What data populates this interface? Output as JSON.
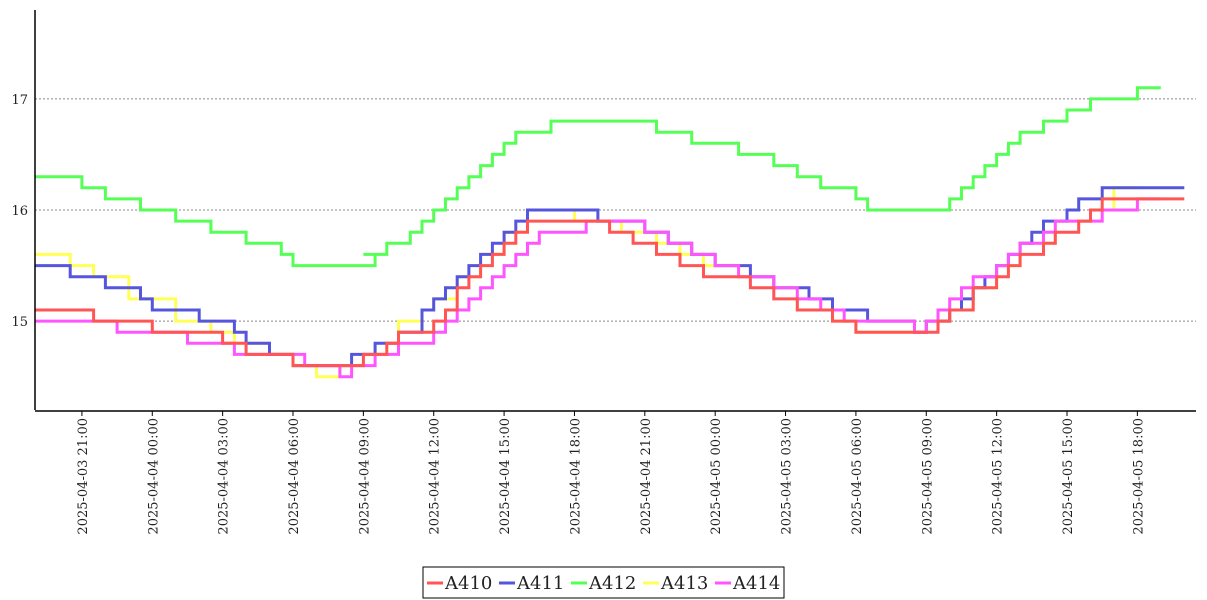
{
  "chart_data": {
    "type": "line",
    "step": true,
    "x_ticks": [
      "2025-04-03 21:00",
      "2025-04-04 00:00",
      "2025-04-04 03:00",
      "2025-04-04 06:00",
      "2025-04-04 09:00",
      "2025-04-04 12:00",
      "2025-04-04 15:00",
      "2025-04-04 18:00",
      "2025-04-04 21:00",
      "2025-04-05 00:00",
      "2025-04-05 03:00",
      "2025-04-05 06:00",
      "2025-04-05 09:00",
      "2025-04-05 12:00",
      "2025-04-05 15:00",
      "2025-04-05 18:00"
    ],
    "y_ticks": [
      "15",
      "16",
      "17"
    ],
    "xlim": [
      "2025-04-03 19:00",
      "2025-04-05 20:30"
    ],
    "ylim": [
      14.2,
      17.8
    ],
    "grid": "horizontal dotted",
    "legend_position": "bottom-center",
    "series": [
      {
        "name": "A410",
        "color": "#ff5555",
        "points": [
          [
            "2025-04-03 19:00",
            15.1
          ],
          [
            "2025-04-03 21:30",
            15.0
          ],
          [
            "2025-04-04 00:00",
            14.9
          ],
          [
            "2025-04-04 03:00",
            14.8
          ],
          [
            "2025-04-04 04:00",
            14.7
          ],
          [
            "2025-04-04 06:00",
            14.6
          ],
          [
            "2025-04-04 09:00",
            14.7
          ],
          [
            "2025-04-04 10:00",
            14.8
          ],
          [
            "2025-04-04 10:30",
            14.9
          ],
          [
            "2025-04-04 12:00",
            15.0
          ],
          [
            "2025-04-04 12:30",
            15.1
          ],
          [
            "2025-04-04 13:00",
            15.3
          ],
          [
            "2025-04-04 13:30",
            15.4
          ],
          [
            "2025-04-04 14:00",
            15.5
          ],
          [
            "2025-04-04 14:30",
            15.6
          ],
          [
            "2025-04-04 15:00",
            15.7
          ],
          [
            "2025-04-04 15:30",
            15.8
          ],
          [
            "2025-04-04 16:00",
            15.9
          ],
          [
            "2025-04-04 18:30",
            15.9
          ],
          [
            "2025-04-04 19:30",
            15.8
          ],
          [
            "2025-04-04 20:30",
            15.7
          ],
          [
            "2025-04-04 21:30",
            15.6
          ],
          [
            "2025-04-04 22:30",
            15.5
          ],
          [
            "2025-04-04 23:30",
            15.4
          ],
          [
            "2025-04-05 01:30",
            15.3
          ],
          [
            "2025-04-05 02:30",
            15.2
          ],
          [
            "2025-04-05 03:30",
            15.1
          ],
          [
            "2025-04-05 05:00",
            15.0
          ],
          [
            "2025-04-05 06:00",
            14.9
          ],
          [
            "2025-04-05 08:00",
            14.9
          ],
          [
            "2025-04-05 09:30",
            15.0
          ],
          [
            "2025-04-05 10:00",
            15.1
          ],
          [
            "2025-04-05 11:00",
            15.3
          ],
          [
            "2025-04-05 12:00",
            15.4
          ],
          [
            "2025-04-05 12:30",
            15.5
          ],
          [
            "2025-04-05 13:00",
            15.6
          ],
          [
            "2025-04-05 14:00",
            15.7
          ],
          [
            "2025-04-05 14:30",
            15.8
          ],
          [
            "2025-04-05 15:30",
            15.9
          ],
          [
            "2025-04-05 16:00",
            16.0
          ],
          [
            "2025-04-05 16:30",
            16.1
          ],
          [
            "2025-04-05 20:00",
            16.1
          ]
        ]
      },
      {
        "name": "A411",
        "color": "#5555dd",
        "points": [
          [
            "2025-04-03 19:00",
            15.5
          ],
          [
            "2025-04-03 20:30",
            15.4
          ],
          [
            "2025-04-03 22:00",
            15.3
          ],
          [
            "2025-04-03 23:30",
            15.2
          ],
          [
            "2025-04-04 00:00",
            15.1
          ],
          [
            "2025-04-04 02:00",
            15.0
          ],
          [
            "2025-04-04 03:30",
            14.9
          ],
          [
            "2025-04-04 04:00",
            14.8
          ],
          [
            "2025-04-04 05:00",
            14.7
          ],
          [
            "2025-04-04 06:00",
            14.6
          ],
          [
            "2025-04-04 08:30",
            14.7
          ],
          [
            "2025-04-04 09:30",
            14.8
          ],
          [
            "2025-04-04 10:30",
            14.9
          ],
          [
            "2025-04-04 11:30",
            15.1
          ],
          [
            "2025-04-04 12:00",
            15.2
          ],
          [
            "2025-04-04 12:30",
            15.3
          ],
          [
            "2025-04-04 13:00",
            15.4
          ],
          [
            "2025-04-04 13:30",
            15.5
          ],
          [
            "2025-04-04 14:00",
            15.6
          ],
          [
            "2025-04-04 14:30",
            15.7
          ],
          [
            "2025-04-04 15:00",
            15.8
          ],
          [
            "2025-04-04 15:30",
            15.9
          ],
          [
            "2025-04-04 16:00",
            16.0
          ],
          [
            "2025-04-04 19:00",
            15.9
          ],
          [
            "2025-04-04 21:00",
            15.8
          ],
          [
            "2025-04-04 22:00",
            15.7
          ],
          [
            "2025-04-04 23:00",
            15.6
          ],
          [
            "2025-04-05 00:00",
            15.5
          ],
          [
            "2025-04-05 01:30",
            15.4
          ],
          [
            "2025-04-05 02:30",
            15.3
          ],
          [
            "2025-04-05 04:00",
            15.2
          ],
          [
            "2025-04-05 05:00",
            15.1
          ],
          [
            "2025-04-05 06:30",
            15.0
          ],
          [
            "2025-04-05 08:30",
            14.9
          ],
          [
            "2025-04-05 09:00",
            15.0
          ],
          [
            "2025-04-05 10:00",
            15.1
          ],
          [
            "2025-04-05 10:30",
            15.2
          ],
          [
            "2025-04-05 11:00",
            15.3
          ],
          [
            "2025-04-05 11:30",
            15.4
          ],
          [
            "2025-04-05 12:00",
            15.5
          ],
          [
            "2025-04-05 12:30",
            15.6
          ],
          [
            "2025-04-05 13:00",
            15.7
          ],
          [
            "2025-04-05 13:30",
            15.8
          ],
          [
            "2025-04-05 14:00",
            15.9
          ],
          [
            "2025-04-05 15:00",
            16.0
          ],
          [
            "2025-04-05 15:30",
            16.1
          ],
          [
            "2025-04-05 16:30",
            16.2
          ],
          [
            "2025-04-05 20:00",
            16.2
          ]
        ]
      },
      {
        "name": "A412",
        "color": "#55ff55",
        "points": [
          [
            "2025-04-03 19:00",
            16.3
          ],
          [
            "2025-04-03 21:00",
            16.2
          ],
          [
            "2025-04-03 22:00",
            16.1
          ],
          [
            "2025-04-03 23:30",
            16.0
          ],
          [
            "2025-04-04 01:00",
            15.9
          ],
          [
            "2025-04-04 02:30",
            15.8
          ],
          [
            "2025-04-04 04:00",
            15.7
          ],
          [
            "2025-04-04 05:30",
            15.6
          ],
          [
            "2025-04-04 06:00",
            15.5
          ],
          [
            "2025-04-04 09:30",
            15.6
          ],
          [
            "2025-04-04 09:00",
            15.6
          ],
          [
            "2025-04-04 10:00",
            15.7
          ],
          [
            "2025-04-04 11:00",
            15.8
          ],
          [
            "2025-04-04 11:30",
            15.9
          ],
          [
            "2025-04-04 12:00",
            16.0
          ],
          [
            "2025-04-04 12:30",
            16.1
          ],
          [
            "2025-04-04 13:00",
            16.2
          ],
          [
            "2025-04-04 13:30",
            16.3
          ],
          [
            "2025-04-04 14:00",
            16.4
          ],
          [
            "2025-04-04 14:30",
            16.5
          ],
          [
            "2025-04-04 15:00",
            16.6
          ],
          [
            "2025-04-04 15:30",
            16.7
          ],
          [
            "2025-04-04 17:00",
            16.8
          ],
          [
            "2025-04-04 21:30",
            16.7
          ],
          [
            "2025-04-04 23:00",
            16.6
          ],
          [
            "2025-04-05 01:00",
            16.5
          ],
          [
            "2025-04-05 02:30",
            16.4
          ],
          [
            "2025-04-05 03:30",
            16.3
          ],
          [
            "2025-04-05 04:30",
            16.2
          ],
          [
            "2025-04-05 06:00",
            16.1
          ],
          [
            "2025-04-05 06:30",
            16.0
          ],
          [
            "2025-04-05 10:00",
            16.1
          ],
          [
            "2025-04-05 10:30",
            16.2
          ],
          [
            "2025-04-05 11:00",
            16.3
          ],
          [
            "2025-04-05 11:30",
            16.4
          ],
          [
            "2025-04-05 12:00",
            16.5
          ],
          [
            "2025-04-05 12:30",
            16.6
          ],
          [
            "2025-04-05 13:00",
            16.7
          ],
          [
            "2025-04-05 14:00",
            16.8
          ],
          [
            "2025-04-05 15:00",
            16.9
          ],
          [
            "2025-04-05 16:00",
            17.0
          ],
          [
            "2025-04-05 18:00",
            17.1
          ],
          [
            "2025-04-05 19:00",
            17.1
          ]
        ]
      },
      {
        "name": "A413",
        "color": "#ffff55",
        "points": [
          [
            "2025-04-03 19:00",
            15.6
          ],
          [
            "2025-04-03 20:30",
            15.5
          ],
          [
            "2025-04-03 21:30",
            15.4
          ],
          [
            "2025-04-03 23:00",
            15.2
          ],
          [
            "2025-04-04 01:00",
            15.0
          ],
          [
            "2025-04-04 02:30",
            14.9
          ],
          [
            "2025-04-04 03:30",
            14.8
          ],
          [
            "2025-04-04 05:00",
            14.7
          ],
          [
            "2025-04-04 06:00",
            14.6
          ],
          [
            "2025-04-04 07:00",
            14.5
          ],
          [
            "2025-04-04 08:00",
            14.6
          ],
          [
            "2025-04-04 09:00",
            14.7
          ],
          [
            "2025-04-04 10:00",
            14.8
          ],
          [
            "2025-04-04 10:30",
            15.0
          ],
          [
            "2025-04-04 11:30",
            15.1
          ],
          [
            "2025-04-04 12:00",
            15.2
          ],
          [
            "2025-04-04 13:00",
            15.4
          ],
          [
            "2025-04-04 14:00",
            15.6
          ],
          [
            "2025-04-04 15:00",
            15.8
          ],
          [
            "2025-04-04 16:00",
            16.0
          ],
          [
            "2025-04-04 18:00",
            15.9
          ],
          [
            "2025-04-04 20:00",
            15.8
          ],
          [
            "2025-04-04 21:30",
            15.7
          ],
          [
            "2025-04-04 22:30",
            15.6
          ],
          [
            "2025-04-04 23:30",
            15.5
          ],
          [
            "2025-04-05 01:00",
            15.4
          ],
          [
            "2025-04-05 02:30",
            15.3
          ],
          [
            "2025-04-05 03:30",
            15.1
          ],
          [
            "2025-04-05 05:00",
            15.0
          ],
          [
            "2025-04-05 06:00",
            14.9
          ],
          [
            "2025-04-05 09:00",
            15.0
          ],
          [
            "2025-04-05 10:00",
            15.1
          ],
          [
            "2025-04-05 11:00",
            15.3
          ],
          [
            "2025-04-05 12:00",
            15.5
          ],
          [
            "2025-04-05 13:00",
            15.7
          ],
          [
            "2025-04-05 14:30",
            15.9
          ],
          [
            "2025-04-05 16:00",
            16.0
          ],
          [
            "2025-04-05 17:00",
            16.2
          ],
          [
            "2025-04-05 18:00",
            16.2
          ]
        ]
      },
      {
        "name": "A414",
        "color": "#ff55ff",
        "points": [
          [
            "2025-04-03 19:00",
            15.0
          ],
          [
            "2025-04-03 22:00",
            15.0
          ],
          [
            "2025-04-03 22:30",
            14.9
          ],
          [
            "2025-04-04 01:00",
            14.9
          ],
          [
            "2025-04-04 01:30",
            14.8
          ],
          [
            "2025-04-04 03:30",
            14.7
          ],
          [
            "2025-04-04 06:30",
            14.6
          ],
          [
            "2025-04-04 08:00",
            14.5
          ],
          [
            "2025-04-04 08:30",
            14.6
          ],
          [
            "2025-04-04 09:00",
            14.6
          ],
          [
            "2025-04-04 09:30",
            14.7
          ],
          [
            "2025-04-04 10:30",
            14.8
          ],
          [
            "2025-04-04 12:00",
            14.9
          ],
          [
            "2025-04-04 12:30",
            15.0
          ],
          [
            "2025-04-04 13:00",
            15.1
          ],
          [
            "2025-04-04 13:30",
            15.2
          ],
          [
            "2025-04-04 14:00",
            15.3
          ],
          [
            "2025-04-04 14:30",
            15.4
          ],
          [
            "2025-04-04 15:00",
            15.5
          ],
          [
            "2025-04-04 15:30",
            15.6
          ],
          [
            "2025-04-04 16:00",
            15.7
          ],
          [
            "2025-04-04 16:30",
            15.8
          ],
          [
            "2025-04-04 18:30",
            15.9
          ],
          [
            "2025-04-04 21:00",
            15.8
          ],
          [
            "2025-04-04 22:00",
            15.7
          ],
          [
            "2025-04-04 23:00",
            15.6
          ],
          [
            "2025-04-05 00:00",
            15.5
          ],
          [
            "2025-04-05 01:00",
            15.4
          ],
          [
            "2025-04-05 02:30",
            15.3
          ],
          [
            "2025-04-05 03:30",
            15.2
          ],
          [
            "2025-04-05 04:30",
            15.1
          ],
          [
            "2025-04-05 05:30",
            15.0
          ],
          [
            "2025-04-05 08:30",
            14.9
          ],
          [
            "2025-04-05 09:00",
            15.0
          ],
          [
            "2025-04-05 09:30",
            15.1
          ],
          [
            "2025-04-05 10:00",
            15.2
          ],
          [
            "2025-04-05 10:30",
            15.3
          ],
          [
            "2025-04-05 11:00",
            15.4
          ],
          [
            "2025-04-05 12:00",
            15.5
          ],
          [
            "2025-04-05 12:30",
            15.6
          ],
          [
            "2025-04-05 13:00",
            15.7
          ],
          [
            "2025-04-05 14:00",
            15.8
          ],
          [
            "2025-04-05 14:30",
            15.9
          ],
          [
            "2025-04-05 16:00",
            15.9
          ],
          [
            "2025-04-05 16:30",
            16.0
          ],
          [
            "2025-04-05 18:00",
            16.1
          ],
          [
            "2025-04-05 19:00",
            16.1
          ]
        ]
      }
    ]
  }
}
